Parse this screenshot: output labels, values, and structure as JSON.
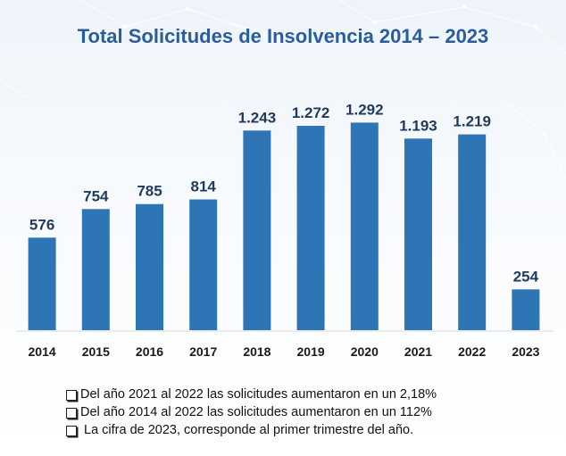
{
  "chart_data": {
    "type": "bar",
    "title": "Total Solicitudes de Insolvencia 2014 – 2023",
    "categories": [
      "2014",
      "2015",
      "2016",
      "2017",
      "2018",
      "2019",
      "2020",
      "2021",
      "2022",
      "2023"
    ],
    "values": [
      576,
      754,
      785,
      814,
      1243,
      1272,
      1292,
      1193,
      1219,
      254
    ],
    "value_labels": [
      "576",
      "754",
      "785",
      "814",
      "1.243",
      "1.272",
      "1.292",
      "1.193",
      "1.219",
      "254"
    ],
    "xlabel": "",
    "ylabel": "",
    "ylim": [
      0,
      1500
    ],
    "grid": false,
    "legend": "none",
    "bar_color": "#2e75b6",
    "label_color": "#1f3a5c",
    "title_color": "#2b5d9b"
  },
  "notes": [
    "Del año 2021 al 2022 las solicitudes aumentaron en un 2,18%",
    "Del año 2014 al 2022 las solicitudes aumentaron en un 112%",
    "La cifra de 2023, corresponde al primer trimestre del año."
  ]
}
